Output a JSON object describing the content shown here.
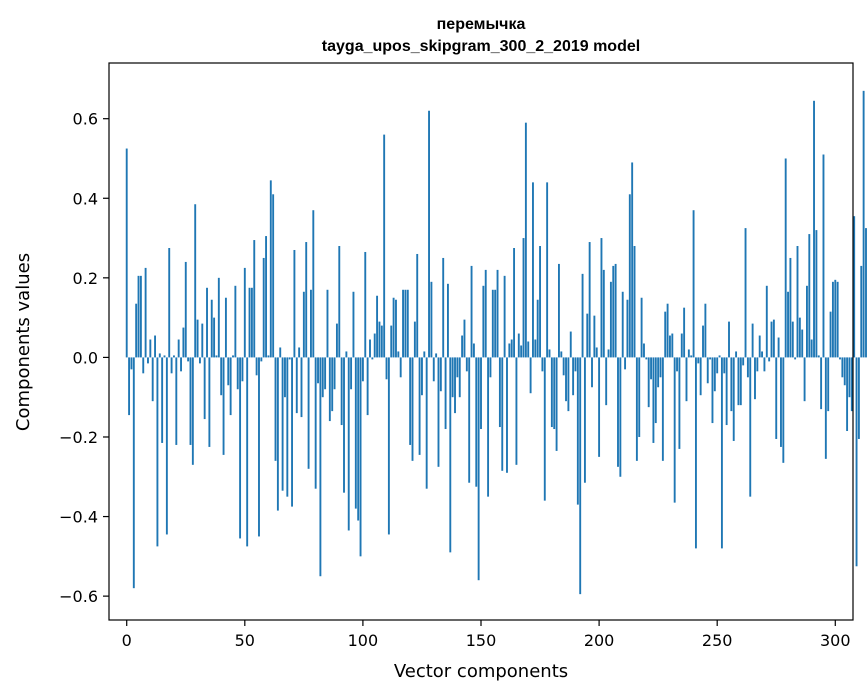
{
  "chart_data": {
    "type": "bar",
    "title": "перемычка",
    "subtitle": "tayga_upos_skipgram_300_2_2019 model",
    "xlabel": "Vector components",
    "ylabel": "Components values",
    "xlim": [
      -7.5,
      307.5
    ],
    "ylim": [
      -0.66,
      0.74
    ],
    "xticks": [
      0,
      50,
      100,
      150,
      200,
      250,
      300
    ],
    "xtick_labels": [
      "0",
      "50",
      "100",
      "150",
      "200",
      "250",
      "300"
    ],
    "yticks": [
      -0.6,
      -0.4,
      -0.2,
      0.0,
      0.2,
      0.4,
      0.6
    ],
    "ytick_labels": [
      "−0.6",
      "−0.4",
      "−0.2",
      "0.0",
      "0.2",
      "0.4",
      "0.6"
    ],
    "grid": false,
    "bar_color": "#1f77b4",
    "values": [
      0.525,
      -0.145,
      -0.03,
      -0.58,
      0.135,
      0.205,
      0.205,
      -0.04,
      0.225,
      -0.015,
      0.045,
      -0.11,
      0.055,
      -0.475,
      0.01,
      -0.215,
      0.005,
      -0.445,
      0.275,
      -0.04,
      0.005,
      -0.22,
      0.045,
      -0.035,
      0.075,
      0.24,
      -0.01,
      -0.22,
      -0.27,
      0.385,
      0.095,
      -0.015,
      0.085,
      -0.155,
      0.175,
      -0.225,
      0.145,
      0.1,
      0.005,
      0.2,
      -0.095,
      -0.245,
      0.15,
      -0.07,
      -0.145,
      0.005,
      0.18,
      -0.08,
      -0.455,
      -0.06,
      0.225,
      -0.475,
      0.175,
      0.175,
      0.295,
      -0.045,
      -0.45,
      -0.01,
      0.25,
      0.305,
      0.005,
      0.445,
      0.41,
      -0.26,
      -0.385,
      0.025,
      -0.335,
      -0.1,
      -0.35,
      -0.005,
      -0.375,
      0.27,
      -0.14,
      0.025,
      -0.15,
      0.165,
      0.29,
      -0.28,
      0.17,
      0.37,
      -0.33,
      -0.065,
      -0.55,
      -0.1,
      -0.08,
      0.17,
      -0.16,
      -0.135,
      -0.08,
      0.085,
      0.28,
      -0.17,
      -0.34,
      0.015,
      -0.435,
      -0.08,
      0.165,
      -0.38,
      -0.41,
      -0.5,
      -0.06,
      0.265,
      -0.145,
      0.045,
      -0.005,
      0.06,
      0.155,
      0.09,
      0.08,
      0.56,
      -0.055,
      -0.445,
      0.08,
      0.15,
      0.145,
      0.015,
      -0.05,
      0.17,
      0.17,
      0.17,
      -0.22,
      -0.26,
      0.09,
      0.26,
      -0.245,
      -0.095,
      0.015,
      -0.33,
      0.62,
      0.19,
      -0.06,
      0.01,
      -0.275,
      -0.085,
      0.25,
      -0.18,
      0.185,
      -0.49,
      -0.1,
      -0.14,
      -0.05,
      -0.1,
      0.055,
      0.095,
      -0.035,
      -0.315,
      0.23,
      0.035,
      -0.325,
      -0.56,
      -0.18,
      0.18,
      0.22,
      -0.35,
      -0.05,
      0.17,
      0.17,
      0.22,
      -0.175,
      -0.285,
      0.205,
      -0.29,
      0.035,
      0.045,
      0.275,
      -0.27,
      0.06,
      0.03,
      0.3,
      0.59,
      0.04,
      -0.09,
      0.44,
      0.045,
      0.145,
      0.28,
      -0.035,
      -0.36,
      0.44,
      0.02,
      -0.175,
      -0.18,
      -0.235,
      0.235,
      0.015,
      -0.045,
      -0.11,
      -0.135,
      0.065,
      -0.095,
      -0.035,
      -0.37,
      -0.595,
      0.21,
      -0.315,
      0.11,
      0.29,
      -0.075,
      0.105,
      0.025,
      -0.25,
      0.3,
      0.22,
      -0.12,
      0.02,
      0.19,
      0.23,
      0.235,
      -0.275,
      -0.3,
      0.165,
      -0.03,
      0.145,
      0.41,
      0.49,
      0.28,
      -0.26,
      -0.2,
      0.15,
      0.035,
      -0.005,
      -0.125,
      -0.055,
      -0.215,
      -0.165,
      -0.075,
      -0.05,
      -0.26,
      0.115,
      0.135,
      0.055,
      0.06,
      -0.365,
      -0.035,
      -0.23,
      0.06,
      0.125,
      -0.11,
      0.02,
      0.005,
      0.37,
      -0.48,
      -0.015,
      -0.095,
      0.08,
      0.135,
      -0.065,
      -0.005,
      -0.165,
      -0.085,
      -0.04,
      0.005,
      -0.48,
      -0.04,
      -0.17,
      0.09,
      -0.135,
      -0.21,
      0.015,
      -0.12,
      -0.12,
      -0.02,
      0.325,
      -0.05,
      -0.35,
      0.085,
      -0.105,
      -0.035,
      0.055,
      0.015,
      -0.035,
      0.18,
      -0.01,
      0.09,
      0.095,
      -0.205,
      0.05,
      -0.225,
      -0.265,
      0.5,
      0.165,
      0.25,
      0.09,
      -0.005,
      0.28,
      0.1,
      0.07,
      -0.11,
      0.18,
      0.31,
      0.045,
      0.645,
      0.32,
      0.005,
      -0.13,
      0.51,
      -0.255,
      -0.135,
      0.115,
      0.19,
      0.195,
      0.19,
      -0.005,
      -0.05,
      -0.07,
      -0.185,
      -0.1,
      -0.135,
      0.355,
      -0.525,
      -0.205,
      0.23,
      0.67,
      0.325,
      -0.01
    ]
  }
}
